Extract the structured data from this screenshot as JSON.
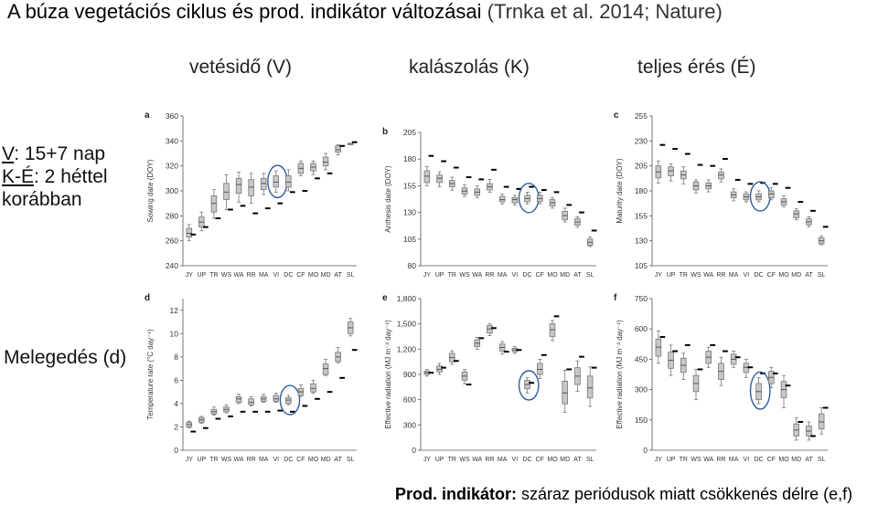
{
  "title": {
    "main": "A búza vegetációs ciklus és prod. indikátor változásai",
    "cite": "(Trnka et al. 2014; Nature)"
  },
  "column_headers": [
    "vetésidő (V)",
    "kalászolás (K)",
    "teljes érés (É)"
  ],
  "side_note": {
    "line1_prefix": "V",
    "line1_rest": ": 15+7 nap",
    "line2_prefix": "K-É",
    "line2_rest": ": 2 héttel",
    "line3": "korábban"
  },
  "warming_label": "Melegedés (d)",
  "footer": {
    "bold": "Prod. indikátor:",
    "rest": " száraz periódusok miatt csökkenés délre (e,f)"
  },
  "chart_data": [
    {
      "type": "box",
      "panel": "a",
      "ylabel": "Sowing date (DOY)",
      "ylim": [
        240,
        360
      ],
      "yticks": [
        240,
        260,
        280,
        300,
        320,
        340,
        360
      ],
      "categories": [
        "JY",
        "UP",
        "TR",
        "WS",
        "WA",
        "RR",
        "MA",
        "VI",
        "DC",
        "CF",
        "MO",
        "MD",
        "AT",
        "SL"
      ],
      "boxes": [
        {
          "low": 260,
          "q1": 263,
          "median": 266,
          "q3": 270,
          "high": 273
        },
        {
          "low": 268,
          "q1": 271,
          "median": 275,
          "q3": 279,
          "high": 283
        },
        {
          "low": 278,
          "q1": 283,
          "median": 290,
          "q3": 296,
          "high": 301
        },
        {
          "low": 285,
          "q1": 293,
          "median": 299,
          "q3": 306,
          "high": 313
        },
        {
          "low": 291,
          "q1": 298,
          "median": 305,
          "q3": 310,
          "high": 315
        },
        {
          "low": 290,
          "q1": 296,
          "median": 303,
          "q3": 309,
          "high": 314
        },
        {
          "low": 297,
          "q1": 301,
          "median": 306,
          "q3": 310,
          "high": 314
        },
        {
          "low": 299,
          "q1": 303,
          "median": 307,
          "q3": 312,
          "high": 316
        },
        {
          "low": 300,
          "q1": 303,
          "median": 307,
          "q3": 312,
          "high": 317
        },
        {
          "low": 312,
          "q1": 314,
          "median": 318,
          "q3": 322,
          "high": 324
        },
        {
          "low": 313,
          "q1": 316,
          "median": 319,
          "q3": 322,
          "high": 324
        },
        {
          "low": 317,
          "q1": 320,
          "median": 323,
          "q3": 327,
          "high": 330
        },
        {
          "low": 329,
          "q1": 331,
          "median": 333,
          "q3": 336,
          "high": 337
        },
        {
          "low": 338,
          "q1": 338,
          "median": 338,
          "q3": 338,
          "high": 338
        }
      ],
      "markers": [
        265,
        271,
        278,
        285,
        288,
        282,
        286,
        290,
        299,
        300,
        310,
        314,
        336,
        339
      ],
      "highlight": "VI"
    },
    {
      "type": "box",
      "panel": "b",
      "ylabel": "Anthesis date (DOY)",
      "ylim": [
        80,
        205
      ],
      "yticks": [
        80,
        105,
        130,
        155,
        180,
        205
      ],
      "categories": [
        "JY",
        "UP",
        "TR",
        "WS",
        "WA",
        "RR",
        "MA",
        "VI",
        "DC",
        "CF",
        "MO",
        "MD",
        "AT",
        "SL"
      ],
      "boxes": [
        {
          "low": 155,
          "q1": 158,
          "median": 164,
          "q3": 169,
          "high": 173
        },
        {
          "low": 154,
          "q1": 158,
          "median": 162,
          "q3": 165,
          "high": 168
        },
        {
          "low": 151,
          "q1": 154,
          "median": 157,
          "q3": 160,
          "high": 163
        },
        {
          "low": 145,
          "q1": 147,
          "median": 150,
          "q3": 153,
          "high": 156
        },
        {
          "low": 144,
          "q1": 146,
          "median": 149,
          "q3": 152,
          "high": 155
        },
        {
          "low": 149,
          "q1": 151,
          "median": 154,
          "q3": 157,
          "high": 161
        },
        {
          "low": 138,
          "q1": 140,
          "median": 142,
          "q3": 145,
          "high": 147
        },
        {
          "low": 137,
          "q1": 139,
          "median": 142,
          "q3": 144,
          "high": 146
        },
        {
          "low": 138,
          "q1": 140,
          "median": 143,
          "q3": 146,
          "high": 149
        },
        {
          "low": 138,
          "q1": 140,
          "median": 143,
          "q3": 146,
          "high": 149
        },
        {
          "low": 134,
          "q1": 136,
          "median": 139,
          "q3": 142,
          "high": 144
        },
        {
          "low": 121,
          "q1": 123,
          "median": 127,
          "q3": 131,
          "high": 134
        },
        {
          "low": 116,
          "q1": 118,
          "median": 121,
          "q3": 124,
          "high": 126
        },
        {
          "low": 98,
          "q1": 99,
          "median": 102,
          "q3": 105,
          "high": 107
        }
      ],
      "markers": [
        183,
        178,
        172,
        163,
        161,
        170,
        154,
        152,
        154,
        151,
        149,
        137,
        130,
        113
      ],
      "highlight": "DC"
    },
    {
      "type": "box",
      "panel": "c",
      "ylabel": "Maturity date (DOY)",
      "ylim": [
        105,
        255
      ],
      "yticks": [
        105,
        130,
        155,
        180,
        205,
        230,
        255
      ],
      "categories": [
        "JY",
        "UP",
        "TR",
        "WS",
        "WA",
        "RR",
        "MA",
        "VI",
        "DC",
        "CF",
        "MO",
        "MD",
        "AT",
        "SL"
      ],
      "boxes": [
        {
          "low": 188,
          "q1": 193,
          "median": 199,
          "q3": 205,
          "high": 210
        },
        {
          "low": 190,
          "q1": 195,
          "median": 200,
          "q3": 204,
          "high": 207
        },
        {
          "low": 187,
          "q1": 192,
          "median": 196,
          "q3": 200,
          "high": 204
        },
        {
          "low": 178,
          "q1": 181,
          "median": 185,
          "q3": 189,
          "high": 191
        },
        {
          "low": 179,
          "q1": 182,
          "median": 185,
          "q3": 188,
          "high": 191
        },
        {
          "low": 189,
          "q1": 192,
          "median": 196,
          "q3": 199,
          "high": 202
        },
        {
          "low": 170,
          "q1": 173,
          "median": 176,
          "q3": 179,
          "high": 182
        },
        {
          "low": 169,
          "q1": 171,
          "median": 174,
          "q3": 177,
          "high": 179
        },
        {
          "low": 169,
          "q1": 171,
          "median": 174,
          "q3": 177,
          "high": 180
        },
        {
          "low": 171,
          "q1": 173,
          "median": 177,
          "q3": 180,
          "high": 183
        },
        {
          "low": 164,
          "q1": 166,
          "median": 169,
          "q3": 172,
          "high": 175
        },
        {
          "low": 151,
          "q1": 153,
          "median": 157,
          "q3": 160,
          "high": 162
        },
        {
          "low": 144,
          "q1": 146,
          "median": 149,
          "q3": 152,
          "high": 154
        },
        {
          "low": 126,
          "q1": 127,
          "median": 130,
          "q3": 133,
          "high": 135
        }
      ],
      "markers": [
        226,
        222,
        217,
        206,
        205,
        212,
        191,
        187,
        188,
        187,
        183,
        169,
        160,
        144
      ],
      "highlight": "DC"
    },
    {
      "type": "box",
      "panel": "d",
      "ylabel": "Temperature rate (°C day⁻¹)",
      "ylim": [
        0,
        13
      ],
      "yticks": [
        0,
        2,
        4,
        6,
        8,
        10,
        12
      ],
      "categories": [
        "JY",
        "UP",
        "TR",
        "WS",
        "WA",
        "RR",
        "MA",
        "VI",
        "DC",
        "CF",
        "MO",
        "MD",
        "AT",
        "SL"
      ],
      "boxes": [
        {
          "low": 1.9,
          "q1": 2.0,
          "median": 2.2,
          "q3": 2.4,
          "high": 2.5
        },
        {
          "low": 2.3,
          "q1": 2.4,
          "median": 2.6,
          "q3": 2.8,
          "high": 2.9
        },
        {
          "low": 3.0,
          "q1": 3.1,
          "median": 3.3,
          "q3": 3.5,
          "high": 3.7
        },
        {
          "low": 3.2,
          "q1": 3.3,
          "median": 3.5,
          "q3": 3.7,
          "high": 3.9
        },
        {
          "low": 4.0,
          "q1": 4.1,
          "median": 4.4,
          "q3": 4.6,
          "high": 4.8
        },
        {
          "low": 3.8,
          "q1": 3.9,
          "median": 4.1,
          "q3": 4.4,
          "high": 4.6
        },
        {
          "low": 4.1,
          "q1": 4.2,
          "median": 4.4,
          "q3": 4.6,
          "high": 4.8
        },
        {
          "low": 4.1,
          "q1": 4.2,
          "median": 4.4,
          "q3": 4.7,
          "high": 4.9
        },
        {
          "low": 3.9,
          "q1": 4.0,
          "median": 4.3,
          "q3": 4.5,
          "high": 4.7
        },
        {
          "low": 4.6,
          "q1": 4.7,
          "median": 5.0,
          "q3": 5.3,
          "high": 5.6
        },
        {
          "low": 4.9,
          "q1": 5.0,
          "median": 5.3,
          "q3": 5.7,
          "high": 6.0
        },
        {
          "low": 6.4,
          "q1": 6.5,
          "median": 7.0,
          "q3": 7.4,
          "high": 7.8
        },
        {
          "low": 7.5,
          "q1": 7.6,
          "median": 8.0,
          "q3": 8.4,
          "high": 8.8
        },
        {
          "low": 9.8,
          "q1": 10.0,
          "median": 10.5,
          "q3": 11.0,
          "high": 11.3
        }
      ],
      "markers": [
        1.6,
        1.9,
        2.7,
        2.9,
        3.3,
        3.3,
        3.3,
        3.4,
        3.3,
        3.8,
        4.4,
        5.0,
        6.2,
        8.6
      ],
      "highlight": "DC"
    },
    {
      "type": "box",
      "panel": "e",
      "ylabel": "Effective radiation (MJ m⁻² day⁻¹)",
      "ylim": [
        0,
        1800
      ],
      "yticks": [
        0,
        300,
        600,
        900,
        1200,
        1500,
        1800
      ],
      "categories": [
        "JY",
        "UP",
        "TR",
        "WS",
        "WA",
        "RR",
        "MA",
        "VI",
        "DC",
        "CF",
        "MO",
        "MD",
        "AT",
        "SL"
      ],
      "boxes": [
        {
          "low": 880,
          "q1": 900,
          "median": 920,
          "q3": 940,
          "high": 960
        },
        {
          "low": 900,
          "q1": 930,
          "median": 960,
          "q3": 1000,
          "high": 1030
        },
        {
          "low": 1020,
          "q1": 1050,
          "median": 1100,
          "q3": 1150,
          "high": 1180
        },
        {
          "low": 790,
          "q1": 830,
          "median": 880,
          "q3": 930,
          "high": 960
        },
        {
          "low": 1200,
          "q1": 1230,
          "median": 1270,
          "q3": 1310,
          "high": 1340
        },
        {
          "low": 1360,
          "q1": 1390,
          "median": 1440,
          "q3": 1480,
          "high": 1500
        },
        {
          "low": 1140,
          "q1": 1180,
          "median": 1220,
          "q3": 1260,
          "high": 1290
        },
        {
          "low": 1150,
          "q1": 1170,
          "median": 1190,
          "q3": 1210,
          "high": 1230
        },
        {
          "low": 680,
          "q1": 730,
          "median": 780,
          "q3": 830,
          "high": 860
        },
        {
          "low": 850,
          "q1": 900,
          "median": 960,
          "q3": 1030,
          "high": 1080
        },
        {
          "low": 1300,
          "q1": 1350,
          "median": 1430,
          "q3": 1500,
          "high": 1540
        },
        {
          "low": 450,
          "q1": 550,
          "median": 680,
          "q3": 820,
          "high": 950
        },
        {
          "low": 700,
          "q1": 780,
          "median": 880,
          "q3": 980,
          "high": 1060
        },
        {
          "low": 520,
          "q1": 620,
          "median": 740,
          "q3": 880,
          "high": 990
        }
      ],
      "markers": [
        920,
        980,
        1060,
        780,
        1330,
        1450,
        1170,
        1190,
        800,
        1130,
        1590,
        960,
        1110,
        980
      ],
      "highlight": "DC"
    },
    {
      "type": "box",
      "panel": "f",
      "ylabel": "Effective radiation (MJ m⁻² day⁻¹)",
      "ylim": [
        0,
        750
      ],
      "yticks": [
        0,
        150,
        300,
        450,
        600,
        750
      ],
      "categories": [
        "JY",
        "UP",
        "TR",
        "WS",
        "WA",
        "RR",
        "MA",
        "VI",
        "DC",
        "CF",
        "MO",
        "MD",
        "AT",
        "SL"
      ],
      "boxes": [
        {
          "low": 430,
          "q1": 465,
          "median": 510,
          "q3": 550,
          "high": 590
        },
        {
          "low": 370,
          "q1": 405,
          "median": 445,
          "q3": 485,
          "high": 520
        },
        {
          "low": 350,
          "q1": 385,
          "median": 420,
          "q3": 455,
          "high": 480
        },
        {
          "low": 250,
          "q1": 290,
          "median": 330,
          "q3": 370,
          "high": 400
        },
        {
          "low": 410,
          "q1": 430,
          "median": 460,
          "q3": 490,
          "high": 510
        },
        {
          "low": 320,
          "q1": 350,
          "median": 390,
          "q3": 430,
          "high": 460
        },
        {
          "low": 410,
          "q1": 425,
          "median": 450,
          "q3": 475,
          "high": 490
        },
        {
          "low": 360,
          "q1": 385,
          "median": 410,
          "q3": 430,
          "high": 450
        },
        {
          "low": 230,
          "q1": 250,
          "median": 290,
          "q3": 330,
          "high": 360
        },
        {
          "low": 310,
          "q1": 330,
          "median": 360,
          "q3": 390,
          "high": 410
        },
        {
          "low": 210,
          "q1": 260,
          "median": 300,
          "q3": 340,
          "high": 370
        },
        {
          "low": 50,
          "q1": 70,
          "median": 100,
          "q3": 130,
          "high": 160
        },
        {
          "low": 50,
          "q1": 70,
          "median": 95,
          "q3": 120,
          "high": 140
        },
        {
          "low": 80,
          "q1": 105,
          "median": 140,
          "q3": 180,
          "high": 210
        }
      ],
      "markers": [
        560,
        490,
        520,
        400,
        520,
        490,
        460,
        410,
        380,
        380,
        320,
        140,
        70,
        210
      ],
      "highlight": "DC"
    }
  ]
}
